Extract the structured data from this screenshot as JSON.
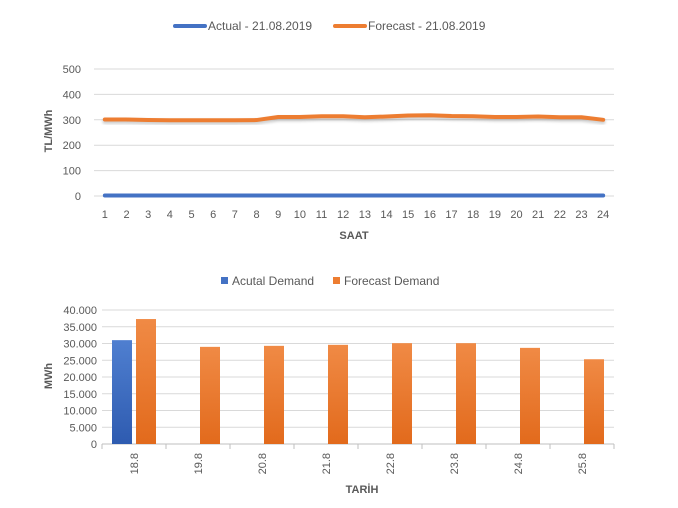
{
  "chart_data": [
    {
      "type": "line",
      "title": "",
      "xlabel": "SAAT",
      "ylabel": "TL/MWh",
      "ylim": [
        0,
        500
      ],
      "yticks": [
        "0",
        "100",
        "200",
        "300",
        "400",
        "500"
      ],
      "categories": [
        "1",
        "2",
        "3",
        "4",
        "5",
        "6",
        "7",
        "8",
        "9",
        "10",
        "11",
        "12",
        "13",
        "14",
        "15",
        "16",
        "17",
        "18",
        "19",
        "20",
        "21",
        "22",
        "23",
        "24"
      ],
      "grid": true,
      "legend_position": "top",
      "series": [
        {
          "name": "Actual - 21.08.2019",
          "color": "#4472c4",
          "values": [
            2,
            2,
            2,
            2,
            2,
            2,
            2,
            2,
            2,
            2,
            2,
            2,
            2,
            2,
            2,
            2,
            2,
            2,
            2,
            2,
            2,
            2,
            2,
            2
          ]
        },
        {
          "name": "Forecast - 21.08.2019",
          "color": "#ed7d31",
          "values": [
            301,
            301,
            299,
            298,
            298,
            298,
            298,
            299,
            311,
            311,
            314,
            314,
            310,
            313,
            317,
            318,
            315,
            314,
            311,
            311,
            313,
            310,
            310,
            300
          ]
        }
      ]
    },
    {
      "type": "bar",
      "title": "",
      "xlabel": "TARİH",
      "ylabel": "MWh",
      "ylim": [
        0,
        40000
      ],
      "yticks": [
        "0",
        "5.000",
        "10.000",
        "15.000",
        "20.000",
        "25.000",
        "30.000",
        "35.000",
        "40.000"
      ],
      "categories": [
        "18.8",
        "19.8",
        "20.8",
        "21.8",
        "22.8",
        "23.8",
        "24.8",
        "25.8"
      ],
      "grid": true,
      "legend_position": "top",
      "series": [
        {
          "name": "Acutal Demand",
          "color": "#4472c4",
          "values": [
            31000,
            null,
            null,
            null,
            null,
            null,
            null,
            null
          ]
        },
        {
          "name": "Forecast Demand",
          "color": "#ed7d31",
          "values": [
            37300,
            29000,
            29300,
            29600,
            30100,
            30100,
            28700,
            25300
          ]
        }
      ]
    }
  ]
}
